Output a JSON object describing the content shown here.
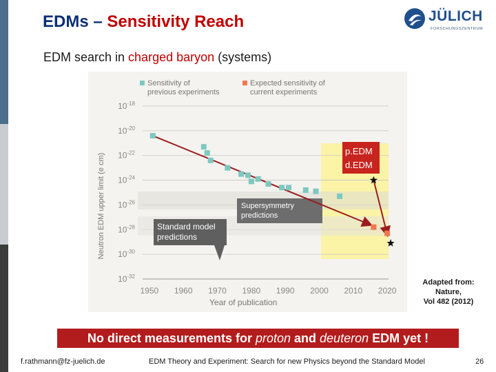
{
  "slide": {
    "title_part1": "EDMs – ",
    "title_part2": "Sensitivity Reach",
    "subtitle_part1": "EDM search in ",
    "subtitle_part2": "charged baryon",
    "subtitle_part3": " (systems)",
    "logo_text": "JÜLICH",
    "logo_subtext": "FORSCHUNGSZENTRUM",
    "credit_line1": "Adapted from:",
    "credit_line2": "Nature,",
    "credit_line3": "Vol 482 (2012)",
    "banner_part1": "No direct measurements for ",
    "banner_part2": "proton",
    "banner_part3": " and ",
    "banner_part4": "deuteron",
    "banner_part5": " EDM yet !",
    "footer_email": "f.rathmann@fz-juelich.de",
    "footer_talk": "EDM Theory and Experiment: Search for new Physics beyond the Standard Model",
    "footer_page": "26",
    "colors": {
      "title": "#0b2f74",
      "accent": "#c00000",
      "banner": "#b31c1c"
    }
  },
  "chart_data": {
    "type": "scatter",
    "xlabel": "Year of publication",
    "ylabel": "Neutron EDM upper limit (e cm)",
    "x_ticks": [
      "1950",
      "1960",
      "1970",
      "1980",
      "1990",
      "2000",
      "2010",
      "2020"
    ],
    "y_tick_exponents": [
      "-18",
      "-20",
      "-22",
      "-24",
      "-26",
      "-28",
      "-30",
      "-32"
    ],
    "y_scale": "log",
    "xlim": [
      1948,
      2022
    ],
    "ylim_exponent": [
      -32,
      -18
    ],
    "legend": [
      {
        "name": "Sensitivity of previous experiments",
        "color": "#7ec8c0"
      },
      {
        "name": "Expected sensitivity of current experiments",
        "color": "#f07850"
      }
    ],
    "series": [
      {
        "name": "Sensitivity of previous experiments",
        "color": "#7ec8c0",
        "points": [
          {
            "x": 1951,
            "y": -20.4
          },
          {
            "x": 1966,
            "y": -21.3
          },
          {
            "x": 1967,
            "y": -21.8
          },
          {
            "x": 1968,
            "y": -22.4
          },
          {
            "x": 1973,
            "y": -23.0
          },
          {
            "x": 1977,
            "y": -23.5
          },
          {
            "x": 1979,
            "y": -23.6
          },
          {
            "x": 1980,
            "y": -24.1
          },
          {
            "x": 1982,
            "y": -23.9
          },
          {
            "x": 1985,
            "y": -24.3
          },
          {
            "x": 1989,
            "y": -24.6
          },
          {
            "x": 1991,
            "y": -24.6
          },
          {
            "x": 1996,
            "y": -24.8
          },
          {
            "x": 1999,
            "y": -24.9
          },
          {
            "x": 2006,
            "y": -25.3
          }
        ]
      },
      {
        "name": "Expected sensitivity of current experiments",
        "color": "#f07850",
        "points": [
          {
            "x": 2016,
            "y": -27.8
          },
          {
            "x": 2020,
            "y": -28.3
          }
        ]
      }
    ],
    "overlay_labels": {
      "susy": "Supersymmetry predictions",
      "sm": "Standard model predictions",
      "pedm": "p.EDM",
      "dedm": "d.EDM"
    },
    "trend_arrows": [
      {
        "from": {
          "x": 1951,
          "y": -20.4
        },
        "to": {
          "x": 2015,
          "y": -27.6
        }
      },
      {
        "from": {
          "x": 2016,
          "y": -24.0
        },
        "to": {
          "x": 2020,
          "y": -28.4
        }
      }
    ],
    "star_markers": [
      {
        "x": 2016,
        "y": -24.0
      },
      {
        "x": 2021,
        "y": -29.1
      }
    ]
  }
}
